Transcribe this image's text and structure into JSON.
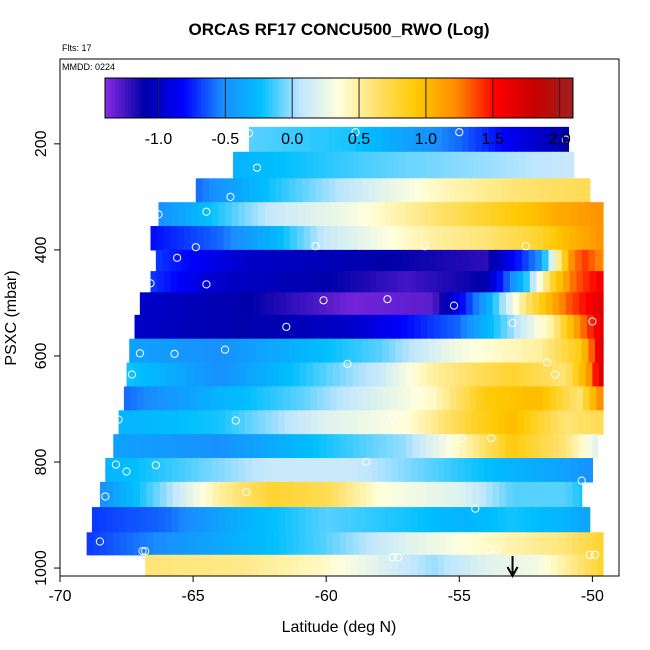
{
  "chart_data": {
    "type": "heatmap",
    "title": "ORCAS RF17 CONCU500_RWO (Log)",
    "annotations": {
      "flights": "Flts: 17",
      "date": "MMDD: 0224"
    },
    "xlabel": "Latitude (deg N)",
    "ylabel": "PSXC (mbar)",
    "xlim": [
      -70,
      -49
    ],
    "ylim": [
      1015,
      40
    ],
    "y_reversed": true,
    "x_ticks": [
      -70,
      -65,
      -60,
      -55,
      -50
    ],
    "y_ticks": [
      200,
      400,
      600,
      800,
      1000
    ],
    "grid": false,
    "colorbar": {
      "position": "top-inside",
      "range": [
        -1.4,
        2.1
      ],
      "ticks": [
        -1.0,
        -0.5,
        0.0,
        0.5,
        1.0,
        1.5,
        2.0
      ],
      "tick_labels": [
        "-1.0",
        "-0.5",
        "0.0",
        "0.5",
        "1.0",
        "1.5",
        "2.0"
      ],
      "colors": [
        "#8a2be2",
        "#0000a8",
        "#0000ff",
        "#1a8cff",
        "#00bfff",
        "#bfe6ff",
        "#ffffdc",
        "#ffe066",
        "#ffc800",
        "#ff8c00",
        "#ff0000",
        "#c80000",
        "#a02020"
      ]
    },
    "marker_latitude": -53.0,
    "layers": [
      {
        "p": 190,
        "x0": -62.9,
        "x1": -50.9,
        "keys": [
          [
            -62.9,
            -0.1
          ],
          [
            -59,
            -0.2
          ],
          [
            -55,
            -0.6
          ],
          [
            -52,
            -1.0
          ],
          [
            -50.9,
            -1.1
          ]
        ]
      },
      {
        "p": 240,
        "x0": -63.5,
        "x1": -50.7,
        "keys": [
          [
            -63.5,
            -0.3
          ],
          [
            -58,
            -0.1
          ],
          [
            -54,
            0.0
          ],
          [
            -50.7,
            0.1
          ]
        ]
      },
      {
        "p": 290,
        "x0": -64.9,
        "x1": -50.1,
        "keys": [
          [
            -64.9,
            -0.6
          ],
          [
            -62,
            -0.2
          ],
          [
            -59,
            0.1
          ],
          [
            -56,
            0.4
          ],
          [
            -53,
            0.6
          ],
          [
            -50.1,
            0.7
          ]
        ]
      },
      {
        "p": 330,
        "x0": -66.3,
        "x1": -49.6,
        "keys": [
          [
            -66.3,
            -0.5
          ],
          [
            -62,
            0.1
          ],
          [
            -59,
            0.3
          ],
          [
            -56,
            0.6
          ],
          [
            -53,
            0.9
          ],
          [
            -51,
            1.1
          ],
          [
            -49.6,
            1.2
          ]
        ]
      },
      {
        "p": 380,
        "x0": -66.6,
        "x1": -49.6,
        "keys": [
          [
            -66.6,
            -0.8
          ],
          [
            -64,
            -0.6
          ],
          [
            -62,
            -0.3
          ],
          [
            -60,
            0.1
          ],
          [
            -58,
            0.3
          ],
          [
            -56,
            0.5
          ],
          [
            -54,
            0.6
          ],
          [
            -52,
            0.8
          ],
          [
            -51,
            1.0
          ],
          [
            -49.6,
            1.2
          ]
        ]
      },
      {
        "p": 420,
        "x0": -66.4,
        "x1": -49.6,
        "keys": [
          [
            -66.4,
            -0.7
          ],
          [
            -63,
            -1.0
          ],
          [
            -58,
            -1.1
          ],
          [
            -54,
            -1.2
          ],
          [
            -52,
            -0.5
          ],
          [
            -51.3,
            0.5
          ],
          [
            -50.8,
            1.2
          ],
          [
            -50.3,
            1.4
          ],
          [
            -49.6,
            1.2
          ]
        ]
      },
      {
        "p": 460,
        "x0": -66.6,
        "x1": -49.6,
        "keys": [
          [
            -66.6,
            -0.7
          ],
          [
            -64,
            -1.0
          ],
          [
            -60,
            -1.1
          ],
          [
            -57,
            -1.25
          ],
          [
            -54,
            -1.1
          ],
          [
            -52.5,
            -0.2
          ],
          [
            -51.5,
            0.8
          ],
          [
            -50.7,
            1.3
          ],
          [
            -49.6,
            1.6
          ]
        ]
      },
      {
        "p": 500,
        "x0": -67.0,
        "x1": -49.6,
        "keys": [
          [
            -67,
            -1.0
          ],
          [
            -63,
            -1.1
          ],
          [
            -59,
            -1.35
          ],
          [
            -56,
            -1.3
          ],
          [
            -54,
            -0.4
          ],
          [
            -52.5,
            0.6
          ],
          [
            -51,
            1.3
          ],
          [
            -49.6,
            1.7
          ]
        ]
      },
      {
        "p": 545,
        "x0": -67.2,
        "x1": -49.6,
        "keys": [
          [
            -67.2,
            -1.0
          ],
          [
            -63,
            -1.1
          ],
          [
            -59,
            -1.0
          ],
          [
            -55,
            -0.6
          ],
          [
            -53,
            0.0
          ],
          [
            -51.5,
            0.5
          ],
          [
            -50.5,
            1.2
          ],
          [
            -49.6,
            1.7
          ]
        ]
      },
      {
        "p": 590,
        "x0": -67.4,
        "x1": -49.6,
        "keys": [
          [
            -67.4,
            -0.4
          ],
          [
            -64,
            -0.5
          ],
          [
            -61,
            -0.3
          ],
          [
            -58,
            -0.1
          ],
          [
            -55,
            0.3
          ],
          [
            -52,
            0.5
          ],
          [
            -50.4,
            0.9
          ],
          [
            -49.6,
            1.8
          ]
        ]
      },
      {
        "p": 635,
        "x0": -67.5,
        "x1": -49.6,
        "keys": [
          [
            -67.5,
            -0.2
          ],
          [
            -64,
            -0.5
          ],
          [
            -61,
            -0.2
          ],
          [
            -58,
            0.1
          ],
          [
            -56,
            0.5
          ],
          [
            -53,
            0.8
          ],
          [
            -51,
            0.6
          ],
          [
            -50.2,
            1.1
          ],
          [
            -49.6,
            1.8
          ]
        ]
      },
      {
        "p": 680,
        "x0": -67.6,
        "x1": -49.6,
        "keys": [
          [
            -67.6,
            -0.6
          ],
          [
            -64,
            -0.3
          ],
          [
            -61,
            -0.1
          ],
          [
            -58,
            0.2
          ],
          [
            -56,
            0.4
          ],
          [
            -54,
            0.9
          ],
          [
            -52,
            1.0
          ],
          [
            -50.5,
            0.6
          ],
          [
            -49.6,
            1.3
          ]
        ]
      },
      {
        "p": 725,
        "x0": -67.8,
        "x1": -49.6,
        "keys": [
          [
            -67.8,
            -0.3
          ],
          [
            -64,
            -0.2
          ],
          [
            -60,
            0.2
          ],
          [
            -57,
            0.35
          ],
          [
            -54.5,
            0.8
          ],
          [
            -53,
            1.0
          ],
          [
            -51,
            0.6
          ],
          [
            -49.6,
            0.7
          ]
        ]
      },
      {
        "p": 770,
        "x0": -68.0,
        "x1": -49.8,
        "keys": [
          [
            -68,
            -0.4
          ],
          [
            -64,
            -0.5
          ],
          [
            -60,
            -0.2
          ],
          [
            -57,
            0.0
          ],
          [
            -55,
            0.4
          ],
          [
            -53,
            0.9
          ],
          [
            -51,
            0.6
          ],
          [
            -49.8,
            0.2
          ]
        ]
      },
      {
        "p": 815,
        "x0": -68.3,
        "x1": -50.0,
        "keys": [
          [
            -68.3,
            -0.3
          ],
          [
            -65,
            -0.1
          ],
          [
            -62,
            0.1
          ],
          [
            -59,
            0.1
          ],
          [
            -56,
            -0.1
          ],
          [
            -53,
            -0.3
          ],
          [
            -51,
            -0.4
          ],
          [
            -50,
            -0.5
          ]
        ]
      },
      {
        "p": 860,
        "x0": -68.5,
        "x1": -50.4,
        "keys": [
          [
            -68.5,
            -0.5
          ],
          [
            -66,
            0.0
          ],
          [
            -64,
            0.5
          ],
          [
            -62,
            0.8
          ],
          [
            -60,
            0.7
          ],
          [
            -58,
            0.35
          ],
          [
            -55,
            0.2
          ],
          [
            -53,
            -0.1
          ],
          [
            -51,
            -0.1
          ],
          [
            -50.4,
            -0.2
          ]
        ]
      },
      {
        "p": 910,
        "x0": -68.8,
        "x1": -50.1,
        "keys": [
          [
            -68.8,
            -0.7
          ],
          [
            -66,
            -0.6
          ],
          [
            -63,
            -0.3
          ],
          [
            -60,
            -0.1
          ],
          [
            -57,
            -0.2
          ],
          [
            -55,
            -0.3
          ],
          [
            -53,
            -0.2
          ],
          [
            -51,
            -0.3
          ],
          [
            -50.1,
            -0.4
          ]
        ]
      },
      {
        "p": 955,
        "x0": -69.0,
        "x1": -49.6,
        "keys": [
          [
            -69,
            -0.7
          ],
          [
            -66,
            -0.5
          ],
          [
            -63,
            -0.3
          ],
          [
            -60,
            -0.1
          ],
          [
            -57,
            0.2
          ],
          [
            -54,
            0.4
          ],
          [
            -51,
            0.6
          ],
          [
            -49.6,
            0.8
          ]
        ]
      },
      {
        "p": 995,
        "x0": -66.8,
        "x1": -49.6,
        "keys": [
          [
            -66.8,
            0.6
          ],
          [
            -63,
            0.55
          ],
          [
            -60,
            0.4
          ],
          [
            -58,
            0.2
          ],
          [
            -56,
            0.0
          ],
          [
            -54,
            0.2
          ],
          [
            -52,
            0.3
          ],
          [
            -50.5,
            0.6
          ],
          [
            -49.6,
            0.8
          ]
        ]
      }
    ],
    "points": [
      [
        -62.9,
        180
      ],
      [
        -58.9,
        178
      ],
      [
        -55.0,
        178
      ],
      [
        -51.0,
        192
      ],
      [
        -62.6,
        245
      ],
      [
        -63.6,
        300
      ],
      [
        -64.5,
        328
      ],
      [
        -66.3,
        333
      ],
      [
        -64.9,
        395
      ],
      [
        -60.4,
        393
      ],
      [
        -56.3,
        393
      ],
      [
        -52.5,
        393
      ],
      [
        -65.6,
        415
      ],
      [
        -66.6,
        463
      ],
      [
        -64.5,
        465
      ],
      [
        -60.1,
        495
      ],
      [
        -57.7,
        493
      ],
      [
        -55.2,
        505
      ],
      [
        -61.5,
        545
      ],
      [
        -53.0,
        538
      ],
      [
        -50.0,
        535
      ],
      [
        -67.0,
        595
      ],
      [
        -65.7,
        596
      ],
      [
        -63.8,
        588
      ],
      [
        -59.2,
        615
      ],
      [
        -51.7,
        612
      ],
      [
        -67.3,
        635
      ],
      [
        -51.4,
        635
      ],
      [
        -67.8,
        720
      ],
      [
        -63.4,
        722
      ],
      [
        -57.5,
        716
      ],
      [
        -54.9,
        755
      ],
      [
        -53.8,
        755
      ],
      [
        -67.9,
        805
      ],
      [
        -67.5,
        818
      ],
      [
        -66.4,
        806
      ],
      [
        -58.5,
        800
      ],
      [
        -50.4,
        835
      ],
      [
        -68.3,
        865
      ],
      [
        -63.0,
        857
      ],
      [
        -54.4,
        888
      ],
      [
        -68.5,
        950
      ],
      [
        -66.9,
        968
      ],
      [
        -66.8,
        968
      ],
      [
        -57.5,
        980
      ],
      [
        -57.3,
        980
      ],
      [
        -53.9,
        965
      ],
      [
        -53.6,
        965
      ],
      [
        -50.1,
        975
      ],
      [
        -49.9,
        975
      ]
    ]
  }
}
